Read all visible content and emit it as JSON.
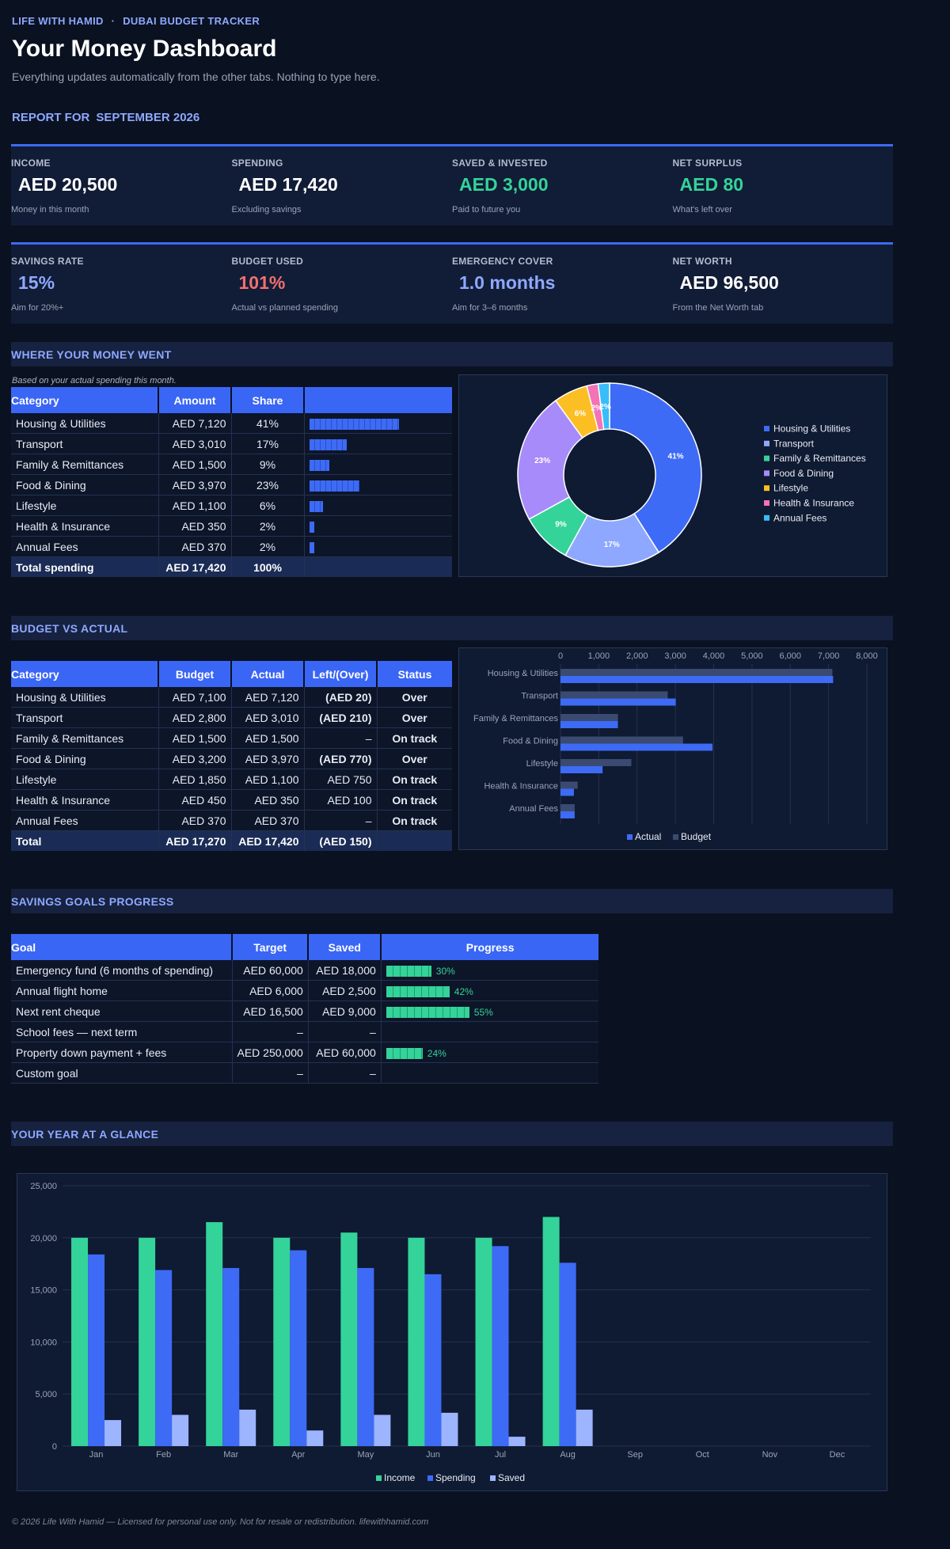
{
  "header": {
    "brand": "LIFE WITH HAMID",
    "brand_sep": "·",
    "brand_sub": "DUBAI BUDGET TRACKER",
    "title": "Your Money Dashboard",
    "subtitle": "Everything updates automatically from the other tabs. Nothing to type here.",
    "report_label": "REPORT FOR",
    "report_period": "SEPTEMBER 2026"
  },
  "kpis_row1": [
    {
      "label": "INCOME",
      "value": "AED 20,500",
      "sub": "Money in this month",
      "color": "#ffffff"
    },
    {
      "label": "SPENDING",
      "value": "AED 17,420",
      "sub": "Excluding savings",
      "color": "#ffffff"
    },
    {
      "label": "SAVED & INVESTED",
      "value": "AED 3,000",
      "sub": "Paid to future you",
      "color": "#34d399"
    },
    {
      "label": "NET SURPLUS",
      "value": "AED 80",
      "sub": "What's left over",
      "color": "#34d399"
    }
  ],
  "kpis_row2": [
    {
      "label": "SAVINGS RATE",
      "value": "15%",
      "sub": "Aim for 20%+",
      "color": "#8ea8ff"
    },
    {
      "label": "BUDGET USED",
      "value": "101%",
      "sub": "Actual vs planned spending",
      "color": "#f07070"
    },
    {
      "label": "EMERGENCY COVER",
      "value": "1.0 months",
      "sub": "Aim for 3–6 months",
      "color": "#8ea8ff"
    },
    {
      "label": "NET WORTH",
      "value": "AED 96,500",
      "sub": "From the Net Worth tab",
      "color": "#ffffff"
    }
  ],
  "spending": {
    "section_title": "WHERE YOUR MONEY WENT",
    "note": "Based on your actual spending this month.",
    "headers": [
      "Category",
      "Amount",
      "Share",
      ""
    ],
    "rows": [
      {
        "category": "Housing & Utilities",
        "amount": "AED 7,120",
        "share": "41%",
        "pct": 41
      },
      {
        "category": "Transport",
        "amount": "AED 3,010",
        "share": "17%",
        "pct": 17
      },
      {
        "category": "Family & Remittances",
        "amount": "AED 1,500",
        "share": "9%",
        "pct": 9
      },
      {
        "category": "Food & Dining",
        "amount": "AED 3,970",
        "share": "23%",
        "pct": 23
      },
      {
        "category": "Lifestyle",
        "amount": "AED 1,100",
        "share": "6%",
        "pct": 6
      },
      {
        "category": "Health & Insurance",
        "amount": "AED 350",
        "share": "2%",
        "pct": 2
      },
      {
        "category": "Annual Fees",
        "amount": "AED 370",
        "share": "2%",
        "pct": 2
      }
    ],
    "total": {
      "label": "Total spending",
      "amount": "AED 17,420",
      "share": "100%"
    }
  },
  "budget": {
    "section_title": "BUDGET VS ACTUAL",
    "headers": [
      "Category",
      "Budget",
      "Actual",
      "Left/(Over)",
      "Status"
    ],
    "rows": [
      {
        "category": "Housing & Utilities",
        "budget": "AED 7,100",
        "actual": "AED 7,120",
        "left": "(AED 20)",
        "left_kind": "neg",
        "status": "Over",
        "status_kind": "over"
      },
      {
        "category": "Transport",
        "budget": "AED 2,800",
        "actual": "AED 3,010",
        "left": "(AED 210)",
        "left_kind": "neg",
        "status": "Over",
        "status_kind": "over"
      },
      {
        "category": "Family & Remittances",
        "budget": "AED 1,500",
        "actual": "AED 1,500",
        "left": "–",
        "left_kind": "plain",
        "status": "On track",
        "status_kind": "ok"
      },
      {
        "category": "Food & Dining",
        "budget": "AED 3,200",
        "actual": "AED 3,970",
        "left": "(AED 770)",
        "left_kind": "neg",
        "status": "Over",
        "status_kind": "over"
      },
      {
        "category": "Lifestyle",
        "budget": "AED 1,850",
        "actual": "AED 1,100",
        "left": "AED 750",
        "left_kind": "pos",
        "status": "On track",
        "status_kind": "ok"
      },
      {
        "category": "Health & Insurance",
        "budget": "AED 450",
        "actual": "AED 350",
        "left": "AED 100",
        "left_kind": "pos",
        "status": "On track",
        "status_kind": "ok"
      },
      {
        "category": "Annual Fees",
        "budget": "AED 370",
        "actual": "AED 370",
        "left": "–",
        "left_kind": "plain",
        "status": "On track",
        "status_kind": "ok"
      }
    ],
    "total": {
      "label": "Total",
      "budget": "AED 17,270",
      "actual": "AED 17,420",
      "left": "(AED 150)"
    }
  },
  "goals": {
    "section_title": "SAVINGS GOALS PROGRESS",
    "headers": [
      "Goal",
      "Target",
      "Saved",
      "Progress"
    ],
    "rows": [
      {
        "goal": "Emergency fund (6 months of spending)",
        "target": "AED 60,000",
        "saved": "AED 18,000",
        "progress": "30%",
        "pct": 30
      },
      {
        "goal": "Annual flight home",
        "target": "AED 6,000",
        "saved": "AED 2,500",
        "progress": "42%",
        "pct": 42
      },
      {
        "goal": "Next rent cheque",
        "target": "AED 16,500",
        "saved": "AED 9,000",
        "progress": "55%",
        "pct": 55
      },
      {
        "goal": "School fees — next term",
        "target": "–",
        "saved": "–",
        "progress": "",
        "pct": 0
      },
      {
        "goal": "Property down payment + fees",
        "target": "AED 250,000",
        "saved": "AED 60,000",
        "progress": "24%",
        "pct": 24
      },
      {
        "goal": "Custom goal",
        "target": "–",
        "saved": "–",
        "progress": "",
        "pct": 0
      }
    ]
  },
  "year": {
    "section_title": "YOUR YEAR AT A GLANCE"
  },
  "footer": "© 2026 Life With Hamid — Licensed for personal use only. Not for resale or redistribution. lifewithhamid.com",
  "colors": {
    "accent": "#3d6bf5",
    "green": "#34d399",
    "red": "#f07070",
    "light_blue": "#8ea8ff"
  },
  "chart_data": [
    {
      "type": "pie",
      "title": "",
      "categories": [
        "Housing & Utilities",
        "Transport",
        "Family & Remittances",
        "Food & Dining",
        "Lifestyle",
        "Health & Insurance",
        "Annual Fees"
      ],
      "values": [
        41,
        17,
        9,
        23,
        6,
        2,
        2
      ],
      "labels": [
        "41%",
        "17%",
        "9%",
        "23%",
        "6%",
        "2%",
        "2%"
      ],
      "colors": [
        "#3d6bf5",
        "#8ea8ff",
        "#34d399",
        "#a78bfa",
        "#fbbf24",
        "#f472b6",
        "#38bdf8"
      ],
      "legend": "right",
      "donut": true
    },
    {
      "type": "bar",
      "orientation": "horizontal",
      "title": "",
      "categories": [
        "Housing & Utilities",
        "Transport",
        "Family & Remittances",
        "Food & Dining",
        "Lifestyle",
        "Health & Insurance",
        "Annual Fees"
      ],
      "series": [
        {
          "name": "Actual",
          "values": [
            7120,
            3010,
            1500,
            3970,
            1100,
            350,
            370
          ],
          "color": "#3d6bf5"
        },
        {
          "name": "Budget",
          "values": [
            7100,
            2800,
            1500,
            3200,
            1850,
            450,
            370
          ],
          "color": "#3a4a70"
        }
      ],
      "xlim": [
        0,
        8000
      ],
      "ticks": [
        "0",
        "1,000",
        "2,000",
        "3,000",
        "4,000",
        "5,000",
        "6,000",
        "7,000",
        "8,000"
      ],
      "legend": "bottom",
      "grid": true
    },
    {
      "type": "bar",
      "title": "",
      "categories": [
        "Jan",
        "Feb",
        "Mar",
        "Apr",
        "May",
        "Jun",
        "Jul",
        "Aug",
        "Sep",
        "Oct",
        "Nov",
        "Dec"
      ],
      "series": [
        {
          "name": "Income",
          "values": [
            20000,
            20000,
            21500,
            20000,
            20500,
            20000,
            20000,
            22000,
            0,
            0,
            0,
            0
          ],
          "color": "#34d399"
        },
        {
          "name": "Spending",
          "values": [
            18400,
            16900,
            17100,
            18800,
            17100,
            16500,
            19200,
            17600,
            0,
            0,
            0,
            0
          ],
          "color": "#3d6bf5"
        },
        {
          "name": "Saved",
          "values": [
            2500,
            3000,
            3500,
            1500,
            3000,
            3200,
            900,
            3500,
            0,
            0,
            0,
            0
          ],
          "color": "#9db4ff"
        }
      ],
      "ylim": [
        0,
        25000
      ],
      "ticks": [
        "0",
        "5,000",
        "10,000",
        "15,000",
        "20,000",
        "25,000"
      ],
      "legend": "bottom",
      "grid": true
    }
  ]
}
